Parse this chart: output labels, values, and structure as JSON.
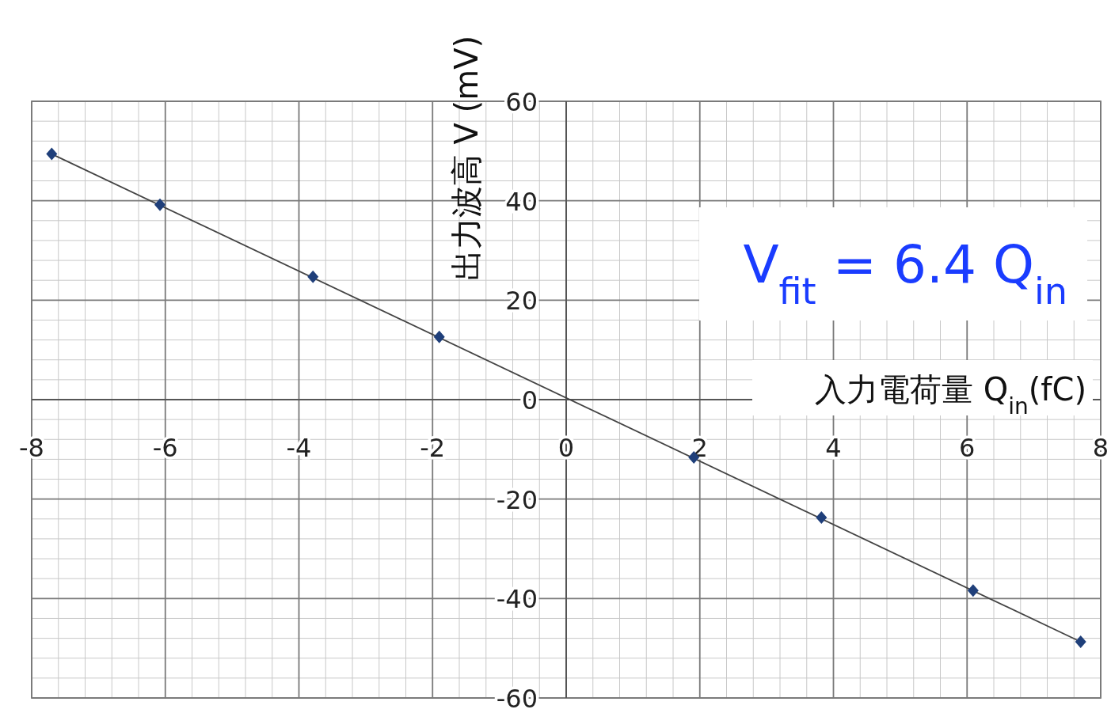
{
  "chart_data": {
    "type": "scatter",
    "xlabel": "入力電荷量 Q$_{in}$(fC)",
    "ylabel": "出力波高 V (mV)",
    "xlim": [
      -8,
      8
    ],
    "ylim": [
      -60,
      60
    ],
    "xticks": [
      -8,
      -6,
      -4,
      -2,
      0,
      2,
      4,
      6,
      8
    ],
    "yticks": [
      -60,
      -40,
      -20,
      0,
      20,
      40,
      60
    ],
    "grid": true,
    "series": [
      {
        "color": "#1f3f7a",
        "marker": "diamond",
        "x": [
          -7.7,
          -6.08,
          -3.79,
          -1.9,
          1.91,
          3.82,
          6.09,
          7.7
        ],
        "values": [
          49.4,
          39.2,
          24.7,
          12.6,
          -11.6,
          -23.7,
          -38.4,
          -48.7
        ]
      },
      {
        "type": "line",
        "color": "#444444",
        "marker": "none",
        "x": [
          -7.7,
          7.7
        ],
        "values": [
          49.4,
          -48.7
        ]
      }
    ],
    "annotations": [
      "V$_{fit}$ = 6.4 Q$_{in}$"
    ]
  }
}
